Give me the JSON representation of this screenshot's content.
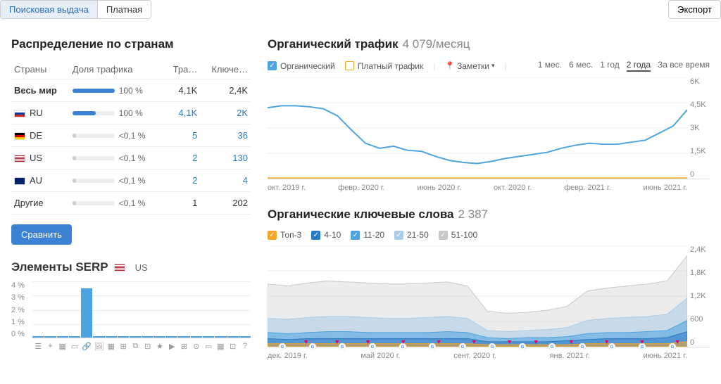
{
  "tabs": {
    "organic": "Поисковая выдача",
    "paid": "Платная"
  },
  "export_label": "Экспорт",
  "countries": {
    "title": "Распределение по странам",
    "headers": [
      "Страны",
      "Доля трафика",
      "Тра…",
      "Ключе…"
    ],
    "rows": [
      {
        "name": "Весь мир",
        "flag": null,
        "share_pct": "100 %",
        "bar_pct": 100,
        "bar_color": "#3b82d4",
        "traffic": "4,1K",
        "keywords": "2,4K",
        "link": false,
        "bold": true
      },
      {
        "name": "RU",
        "flag": "ru",
        "share_pct": "100 %",
        "bar_pct": 55,
        "bar_color": "#3b82d4",
        "traffic": "4,1K",
        "keywords": "2K",
        "link": true
      },
      {
        "name": "DE",
        "flag": "de",
        "share_pct": "<0,1 %",
        "bar_pct": 8,
        "bar_color": "#ccc",
        "traffic": "5",
        "keywords": "36",
        "link": true
      },
      {
        "name": "US",
        "flag": "us",
        "share_pct": "<0,1 %",
        "bar_pct": 8,
        "bar_color": "#ccc",
        "traffic": "2",
        "keywords": "130",
        "link": true
      },
      {
        "name": "AU",
        "flag": "au",
        "share_pct": "<0,1 %",
        "bar_pct": 8,
        "bar_color": "#ccc",
        "traffic": "2",
        "keywords": "4",
        "link": true
      },
      {
        "name": "Другие",
        "flag": null,
        "share_pct": "<0,1 %",
        "bar_pct": 8,
        "bar_color": "#ccc",
        "traffic": "1",
        "keywords": "202",
        "link": false
      }
    ],
    "compare_label": "Сравнить"
  },
  "serp": {
    "title": "Элементы SERP",
    "flag": "us",
    "flag_label": "US",
    "y_labels": [
      "4 %",
      "3 %",
      "2 %",
      "1 %",
      "0 %"
    ],
    "bars": [
      0.02,
      0.02,
      0.02,
      0.02,
      0.88,
      0.02,
      0.02,
      0.02,
      0.02,
      0.02,
      0.02,
      0.02,
      0.02,
      0.02,
      0.02,
      0.02,
      0.02,
      0.02
    ],
    "icons": [
      "☰",
      "⌖",
      "▦",
      "▭",
      "🔗",
      "🖼",
      "▦",
      "⊞",
      "⧉",
      "⊡",
      "★",
      "▶",
      "⊞",
      "⊙",
      "▭",
      "▦",
      "⊡",
      "?"
    ]
  },
  "traffic_chart": {
    "title": "Органический трафик",
    "subtitle": "4 079/месяц",
    "legend": [
      {
        "label": "Органический",
        "color": "#4da3e0",
        "checked": true
      },
      {
        "label": "Платный трафик",
        "color": "#f5a623",
        "checked": false
      }
    ],
    "notes_label": "Заметки",
    "ranges": [
      "1 мес.",
      "6 мес.",
      "1 год",
      "2 года",
      "За все время"
    ],
    "active_range": 3,
    "y_labels": [
      "6K",
      "4,5K",
      "3K",
      "1,5K",
      "0"
    ],
    "x_labels": [
      "окт. 2019 г.",
      "февр. 2020 г.",
      "июнь 2020 г.",
      "окт. 2020 г.",
      "февр. 2021 г.",
      "июнь 2021 г."
    ],
    "line_color": "#4da3e0",
    "baseline_color": "#f5a623",
    "points": [
      0.7,
      0.72,
      0.72,
      0.71,
      0.69,
      0.62,
      0.48,
      0.35,
      0.3,
      0.32,
      0.28,
      0.27,
      0.22,
      0.18,
      0.16,
      0.15,
      0.17,
      0.2,
      0.22,
      0.24,
      0.26,
      0.3,
      0.33,
      0.35,
      0.34,
      0.34,
      0.36,
      0.38,
      0.45,
      0.52,
      0.68
    ]
  },
  "keywords_chart": {
    "title": "Органические ключевые слова",
    "subtitle": "2 387",
    "legend": [
      {
        "label": "Топ-3",
        "color": "#f5a623",
        "checked": true
      },
      {
        "label": "4-10",
        "color": "#2a79c4",
        "checked": true
      },
      {
        "label": "11-20",
        "color": "#4da3e0",
        "checked": true
      },
      {
        "label": "21-50",
        "color": "#a9cce8",
        "checked": true
      },
      {
        "label": "51-100",
        "color": "#c8c8c8",
        "checked": true
      }
    ],
    "y_labels": [
      "2,4K",
      "1,8K",
      "1,2K",
      "600",
      "0"
    ],
    "x_labels": [
      "дек. 2019 г.",
      "май 2020 г.",
      "сент. 2020 г.",
      "янв. 2021 г.",
      "июнь 2021 г."
    ],
    "series": {
      "s51_100": {
        "color": "#c8c8c8",
        "points": [
          0.62,
          0.6,
          0.63,
          0.65,
          0.64,
          0.63,
          0.62,
          0.62,
          0.63,
          0.64,
          0.6,
          0.35,
          0.33,
          0.34,
          0.36,
          0.4,
          0.55,
          0.58,
          0.6,
          0.62,
          0.65,
          0.9
        ]
      },
      "s21_50": {
        "color": "#a9cce8",
        "points": [
          0.28,
          0.27,
          0.29,
          0.3,
          0.3,
          0.29,
          0.28,
          0.28,
          0.29,
          0.3,
          0.28,
          0.16,
          0.15,
          0.16,
          0.17,
          0.19,
          0.26,
          0.28,
          0.29,
          0.3,
          0.32,
          0.48
        ]
      },
      "s11_20": {
        "color": "#4da3e0",
        "points": [
          0.14,
          0.13,
          0.14,
          0.15,
          0.15,
          0.14,
          0.14,
          0.14,
          0.14,
          0.15,
          0.14,
          0.09,
          0.08,
          0.09,
          0.09,
          0.1,
          0.13,
          0.14,
          0.14,
          0.15,
          0.16,
          0.26
        ]
      },
      "s4_10": {
        "color": "#2a79c4",
        "points": [
          0.08,
          0.07,
          0.08,
          0.08,
          0.08,
          0.08,
          0.08,
          0.08,
          0.08,
          0.08,
          0.08,
          0.05,
          0.05,
          0.05,
          0.05,
          0.06,
          0.07,
          0.08,
          0.08,
          0.08,
          0.09,
          0.15
        ]
      },
      "top3": {
        "color": "#f5a623",
        "points": [
          0.03,
          0.03,
          0.03,
          0.03,
          0.03,
          0.03,
          0.03,
          0.03,
          0.03,
          0.03,
          0.03,
          0.02,
          0.02,
          0.02,
          0.02,
          0.02,
          0.03,
          0.03,
          0.03,
          0.03,
          0.03,
          0.05
        ]
      }
    },
    "google_markers": 14,
    "note_markers": [
      0.08,
      0.15,
      0.22,
      0.3,
      0.38,
      0.46,
      0.54,
      0.6,
      0.68,
      0.76,
      0.84,
      0.92
    ]
  },
  "flags": {
    "ru": "linear-gradient(to bottom,#fff 33%,#0039a6 33%,#0039a6 66%,#d52b1e 66%)",
    "de": "linear-gradient(to bottom,#000 33%,#dd0000 33%,#dd0000 66%,#ffce00 66%)",
    "us": "repeating-linear-gradient(#b22234 0 1px,#fff 1px 2px)",
    "au": "#012169"
  }
}
